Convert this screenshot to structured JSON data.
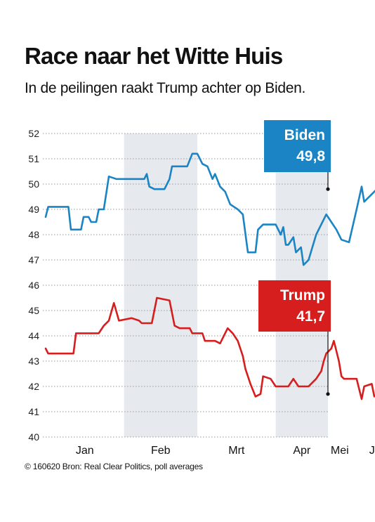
{
  "header": {
    "title": "Race naar het Witte Huis",
    "subtitle": "In de peilingen raakt Trump achter op Biden."
  },
  "footer": {
    "source": "© 160620 Bron: Real Clear Politics, poll averages"
  },
  "colors": {
    "biden": "#1a84c4",
    "trump": "#d61e1e",
    "band": "#e6e9ed",
    "grid": "#9a9a9a"
  },
  "chart_data": {
    "type": "line",
    "title": "Race naar het Witte Huis",
    "subtitle": "In de peilingen raakt Trump achter op Biden.",
    "ylim": [
      40,
      52
    ],
    "y_ticks": [
      "40",
      "41",
      "42",
      "43",
      "44",
      "45",
      "46",
      "47",
      "48",
      "49",
      "50",
      "51",
      "52"
    ],
    "x_ticks": [
      "Jan",
      "Feb",
      "Mrt",
      "Apr",
      "Mei",
      "Jun"
    ],
    "grid": "horizontal dashed",
    "shaded_months": [
      "Feb",
      "Apr",
      "Jun"
    ],
    "series": [
      {
        "name": "Biden",
        "last_value_label": "49,8",
        "points": [
          [
            "2020-01-01",
            48.7
          ],
          [
            "2020-01-02",
            49.1
          ],
          [
            "2020-01-10",
            49.1
          ],
          [
            "2020-01-11",
            48.2
          ],
          [
            "2020-01-15",
            48.2
          ],
          [
            "2020-01-16",
            48.7
          ],
          [
            "2020-01-18",
            48.7
          ],
          [
            "2020-01-19",
            48.5
          ],
          [
            "2020-01-21",
            48.5
          ],
          [
            "2020-01-22",
            49.0
          ],
          [
            "2020-01-24",
            49.0
          ],
          [
            "2020-01-26",
            50.3
          ],
          [
            "2020-01-29",
            50.2
          ],
          [
            "2020-02-09",
            50.2
          ],
          [
            "2020-02-10",
            50.4
          ],
          [
            "2020-02-11",
            49.9
          ],
          [
            "2020-02-13",
            49.8
          ],
          [
            "2020-02-17",
            49.8
          ],
          [
            "2020-02-19",
            50.2
          ],
          [
            "2020-02-20",
            50.7
          ],
          [
            "2020-02-26",
            50.7
          ],
          [
            "2020-02-28",
            51.2
          ],
          [
            "2020-03-01",
            51.2
          ],
          [
            "2020-03-03",
            50.8
          ],
          [
            "2020-03-05",
            50.7
          ],
          [
            "2020-03-07",
            50.2
          ],
          [
            "2020-03-08",
            50.4
          ],
          [
            "2020-03-10",
            49.9
          ],
          [
            "2020-03-12",
            49.7
          ],
          [
            "2020-03-14",
            49.2
          ],
          [
            "2020-03-17",
            49.0
          ],
          [
            "2020-03-19",
            48.8
          ],
          [
            "2020-03-21",
            47.3
          ],
          [
            "2020-03-24",
            47.3
          ],
          [
            "2020-03-25",
            48.2
          ],
          [
            "2020-03-27",
            48.4
          ],
          [
            "2020-04-01",
            48.4
          ],
          [
            "2020-04-03",
            48.0
          ],
          [
            "2020-04-04",
            48.3
          ],
          [
            "2020-04-05",
            47.6
          ],
          [
            "2020-04-06",
            47.6
          ],
          [
            "2020-04-08",
            47.9
          ],
          [
            "2020-04-09",
            47.3
          ],
          [
            "2020-04-11",
            47.5
          ],
          [
            "2020-04-12",
            46.8
          ],
          [
            "2020-04-14",
            47.0
          ],
          [
            "2020-04-17",
            48.0
          ],
          [
            "2020-04-21",
            48.8
          ],
          [
            "2020-04-23",
            48.5
          ],
          [
            "2020-04-25",
            48.2
          ],
          [
            "2020-04-27",
            47.8
          ],
          [
            "2020-04-30",
            47.7
          ],
          [
            "2020-05-03",
            49.0
          ],
          [
            "2020-05-05",
            49.9
          ],
          [
            "2020-05-06",
            49.3
          ],
          [
            "2020-05-08",
            49.5
          ],
          [
            "2020-05-09",
            49.6
          ],
          [
            "2020-05-11",
            49.8
          ]
        ]
      },
      {
        "name": "Trump",
        "last_value_label": "41,7",
        "points": [
          [
            "2020-01-01",
            43.5
          ],
          [
            "2020-01-02",
            43.3
          ],
          [
            "2020-01-12",
            43.3
          ],
          [
            "2020-01-13",
            44.1
          ],
          [
            "2020-01-22",
            44.1
          ],
          [
            "2020-01-24",
            44.4
          ],
          [
            "2020-01-26",
            44.6
          ],
          [
            "2020-01-28",
            45.3
          ],
          [
            "2020-01-30",
            44.6
          ],
          [
            "2020-02-04",
            44.7
          ],
          [
            "2020-02-07",
            44.6
          ],
          [
            "2020-02-08",
            44.5
          ],
          [
            "2020-02-12",
            44.5
          ],
          [
            "2020-02-14",
            45.5
          ],
          [
            "2020-02-19",
            45.4
          ],
          [
            "2020-02-21",
            44.4
          ],
          [
            "2020-02-23",
            44.3
          ],
          [
            "2020-02-27",
            44.3
          ],
          [
            "2020-02-28",
            44.1
          ],
          [
            "2020-03-03",
            44.1
          ],
          [
            "2020-03-04",
            43.8
          ],
          [
            "2020-03-08",
            43.8
          ],
          [
            "2020-03-10",
            43.7
          ],
          [
            "2020-03-13",
            44.3
          ],
          [
            "2020-03-15",
            44.1
          ],
          [
            "2020-03-17",
            43.8
          ],
          [
            "2020-03-18",
            43.5
          ],
          [
            "2020-03-19",
            43.2
          ],
          [
            "2020-03-20",
            42.7
          ],
          [
            "2020-03-22",
            42.1
          ],
          [
            "2020-03-24",
            41.6
          ],
          [
            "2020-03-26",
            41.7
          ],
          [
            "2020-03-27",
            42.4
          ],
          [
            "2020-03-30",
            42.3
          ],
          [
            "2020-04-01",
            42.0
          ],
          [
            "2020-04-06",
            42.0
          ],
          [
            "2020-04-08",
            42.3
          ],
          [
            "2020-04-10",
            42.0
          ],
          [
            "2020-04-14",
            42.0
          ],
          [
            "2020-04-17",
            42.3
          ],
          [
            "2020-04-19",
            42.6
          ],
          [
            "2020-04-20",
            43.0
          ],
          [
            "2020-04-21",
            43.3
          ],
          [
            "2020-04-23",
            43.5
          ],
          [
            "2020-04-24",
            43.8
          ],
          [
            "2020-04-26",
            43.0
          ],
          [
            "2020-04-27",
            42.4
          ],
          [
            "2020-04-28",
            42.3
          ],
          [
            "2020-05-03",
            42.3
          ],
          [
            "2020-05-05",
            41.5
          ],
          [
            "2020-05-06",
            42.0
          ],
          [
            "2020-05-09",
            42.1
          ],
          [
            "2020-05-10",
            41.6
          ],
          [
            "2020-05-11",
            41.7
          ]
        ]
      }
    ]
  }
}
